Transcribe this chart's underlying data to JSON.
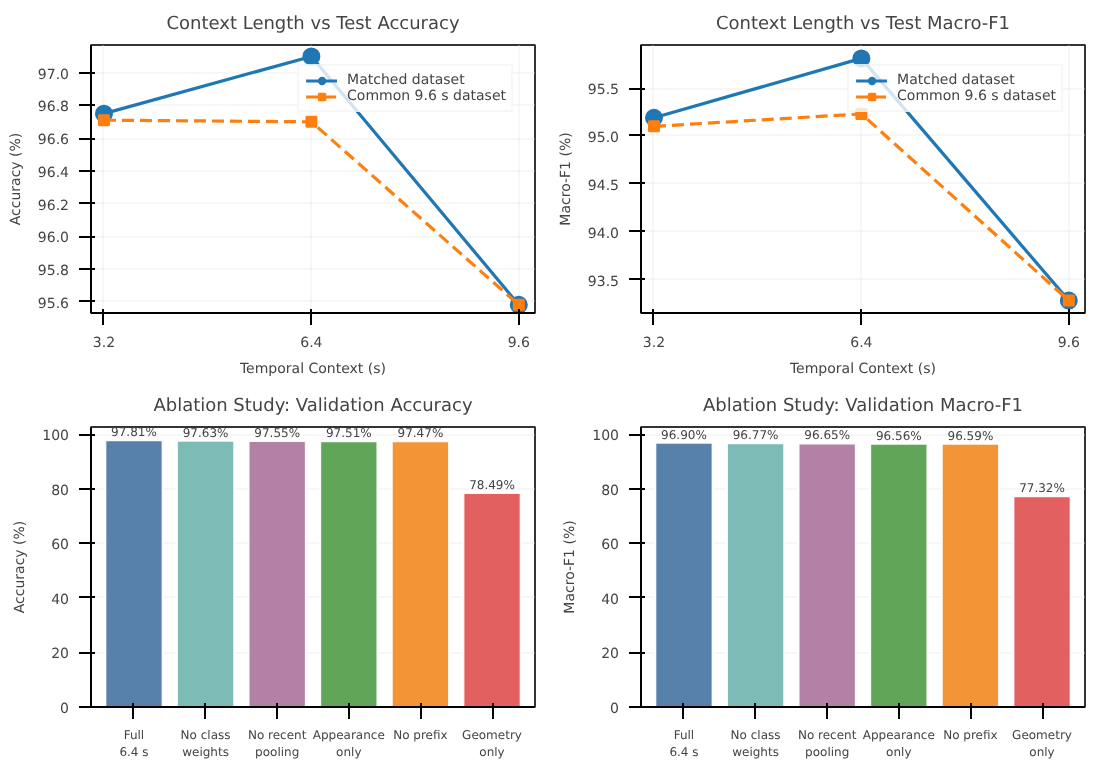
{
  "chart_data": [
    {
      "type": "line",
      "title": "Context Length vs Test Accuracy",
      "xlabel": "Temporal Context (s)",
      "ylabel": "Accuracy (%)",
      "x": [
        3.2,
        6.4,
        9.6
      ],
      "xlim": [
        3.0,
        9.85
      ],
      "xticks": [
        3.2,
        6.4,
        9.6
      ],
      "ylim": [
        95.53,
        97.17
      ],
      "yticks": [
        95.6,
        95.8,
        {
          "value": 96,
          "label": "96.0"
        },
        96.2,
        96.4,
        96.6,
        96.8,
        {
          "value": 97,
          "label": "97.0"
        }
      ],
      "grid": true,
      "legend": "top right",
      "series": [
        {
          "name": "Matched dataset",
          "color": "#1f77b4",
          "marker": "circle",
          "line_style": "solid",
          "values": [
            96.75,
            97.1,
            95.58
          ]
        },
        {
          "name": "Common 9.6 s dataset",
          "color": "#ff7f0e",
          "marker": "square",
          "line_style": "dashed",
          "values": [
            96.71,
            96.7,
            95.58
          ]
        }
      ]
    },
    {
      "type": "line",
      "title": "Context Length vs Test Macro-F1",
      "xlabel": "Temporal Context (s)",
      "ylabel": "Macro-F1 (%)",
      "x": [
        3.2,
        6.4,
        9.6
      ],
      "xlim": [
        3.0,
        9.85
      ],
      "xticks": [
        3.2,
        6.4,
        9.6
      ],
      "ylim": [
        93.15,
        95.95
      ],
      "yticks": [
        93.5,
        {
          "value": 94,
          "label": "94.0"
        },
        94.5,
        {
          "value": 95,
          "label": "95.0"
        },
        95.5
      ],
      "grid": true,
      "legend": "top right",
      "series": [
        {
          "name": "Matched dataset",
          "color": "#1f77b4",
          "marker": "circle",
          "line_style": "solid",
          "values": [
            95.19,
            95.81,
            93.28
          ]
        },
        {
          "name": "Common 9.6 s dataset",
          "color": "#ff7f0e",
          "marker": "square",
          "line_style": "dashed",
          "values": [
            95.1,
            95.23,
            93.28
          ]
        }
      ]
    },
    {
      "type": "bar",
      "title": "Ablation Study: Validation Accuracy",
      "ylabel": "Accuracy (%)",
      "categories": [
        "Full\n6.4 s",
        "No class\nweights",
        "No recent\npooling",
        "Appearance\nonly",
        "No prefix",
        "Geometry\nonly"
      ],
      "values": [
        97.81,
        97.63,
        97.55,
        97.51,
        97.47,
        78.49
      ],
      "colors": [
        "#4e79a7",
        "#76b7b2",
        "#b07aa1",
        "#59a14f",
        "#f28e2b",
        "#e15759"
      ],
      "value_labels": [
        "97.81%",
        "97.63%",
        "97.55%",
        "97.51%",
        "97.47%",
        "78.49%"
      ],
      "ylim": [
        0,
        102.7
      ],
      "yticks": [
        0,
        20,
        40,
        60,
        80,
        100
      ],
      "grid": "y"
    },
    {
      "type": "bar",
      "title": "Ablation Study: Validation Macro-F1",
      "ylabel": "Macro-F1 (%)",
      "categories": [
        "Full\n6.4 s",
        "No class\nweights",
        "No recent\npooling",
        "Appearance\nonly",
        "No prefix",
        "Geometry\nonly"
      ],
      "values": [
        96.9,
        96.77,
        96.65,
        96.56,
        96.59,
        77.32
      ],
      "colors": [
        "#4e79a7",
        "#76b7b2",
        "#b07aa1",
        "#59a14f",
        "#f28e2b",
        "#e15759"
      ],
      "value_labels": [
        "96.90%",
        "96.77%",
        "96.65%",
        "96.56%",
        "96.59%",
        "77.32%"
      ],
      "ylim": [
        0,
        102.7
      ],
      "yticks": [
        0,
        20,
        40,
        60,
        80,
        100
      ],
      "grid": "y"
    }
  ]
}
